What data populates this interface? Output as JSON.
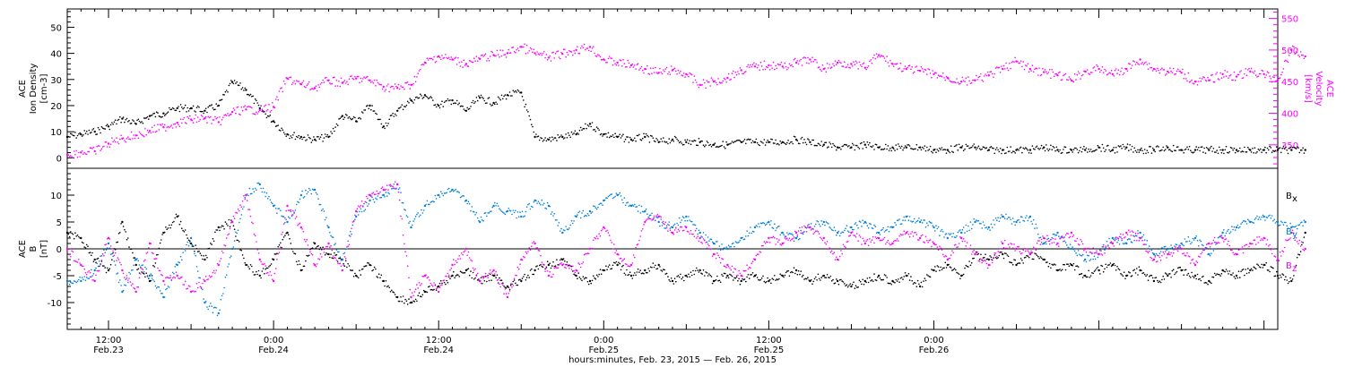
{
  "colors": {
    "black": "#000000",
    "velocity": "#ff00ff",
    "bx": "#000000",
    "by": "#0080e0",
    "bz": "#ff00ff",
    "axes": "#000000"
  },
  "chart_data": [
    {
      "type": "scatter",
      "panel": "top",
      "left_axis": {
        "label_lines": [
          "ACE",
          "Ion Density",
          "[cm-3]"
        ],
        "ylim": [
          -4,
          57
        ],
        "ticks": [
          0,
          10,
          20,
          30,
          40,
          50
        ],
        "tick_labels": [
          "0",
          "10",
          "20",
          "30",
          "40",
          "50"
        ]
      },
      "right_axis": {
        "label_lines": [
          "ACE",
          "Velocity",
          "[km/s]"
        ],
        "ylim": [
          313,
          565
        ],
        "ticks": [
          350,
          400,
          450,
          500,
          550
        ],
        "tick_labels": [
          "350",
          "400",
          "450",
          "500",
          "550"
        ]
      },
      "series": [
        {
          "key": "density",
          "axis": "left",
          "x_hours": [
            0,
            1,
            2,
            3,
            4,
            5,
            6,
            7,
            8,
            9,
            10,
            11,
            12,
            13,
            14,
            15,
            16,
            17,
            18,
            19,
            20,
            21,
            22,
            23,
            24,
            25,
            26,
            27,
            28,
            29,
            30,
            31,
            32,
            33,
            34,
            35,
            36,
            37,
            38,
            39,
            40,
            41,
            42,
            43,
            44,
            45,
            46,
            47,
            48,
            49,
            50,
            51,
            52,
            53,
            54,
            55,
            56,
            57,
            58,
            59,
            60,
            61,
            62,
            63,
            64,
            65,
            66,
            67,
            68,
            69,
            70,
            71,
            72,
            73,
            74,
            75,
            76,
            77,
            78,
            79,
            80,
            81,
            82,
            83,
            84,
            85,
            86,
            87,
            88,
            89,
            90
          ],
          "values": [
            8,
            9,
            10,
            12,
            15,
            13,
            16,
            17,
            19,
            19,
            18,
            20,
            29,
            26,
            19,
            14,
            9,
            8,
            7,
            8,
            16,
            14,
            20,
            12,
            18,
            22,
            24,
            20,
            22,
            18,
            23,
            21,
            24,
            25,
            8,
            7,
            8,
            9,
            13,
            9,
            8,
            7,
            8,
            6,
            7,
            6,
            6,
            5,
            5,
            6,
            6,
            6,
            6,
            7,
            6,
            5,
            4,
            4,
            5,
            4,
            4,
            4,
            4,
            3,
            3,
            4,
            4,
            3,
            3,
            3,
            3,
            4,
            3,
            3,
            3,
            4,
            3,
            4,
            3,
            3,
            4,
            3,
            3,
            3,
            3,
            3,
            3,
            3,
            3,
            3,
            3
          ]
        },
        {
          "key": "velocity",
          "axis": "right",
          "x_hours": [
            0,
            1,
            2,
            3,
            4,
            5,
            6,
            7,
            8,
            9,
            10,
            11,
            12,
            13,
            14,
            15,
            16,
            17,
            18,
            19,
            20,
            21,
            22,
            23,
            24,
            25,
            26,
            27,
            28,
            29,
            30,
            31,
            32,
            33,
            34,
            35,
            36,
            37,
            38,
            39,
            40,
            41,
            42,
            43,
            44,
            45,
            46,
            47,
            48,
            49,
            50,
            51,
            52,
            53,
            54,
            55,
            56,
            57,
            58,
            59,
            60,
            61,
            62,
            63,
            64,
            65,
            66,
            67,
            68,
            69,
            70,
            71,
            72,
            73,
            74,
            75,
            76,
            77,
            78,
            79,
            80,
            81,
            82,
            83,
            84,
            85,
            86,
            87,
            88,
            89,
            90
          ],
          "values": [
            335,
            338,
            340,
            352,
            360,
            365,
            372,
            378,
            385,
            390,
            392,
            386,
            402,
            406,
            405,
            410,
            455,
            446,
            440,
            452,
            448,
            455,
            452,
            442,
            440,
            445,
            480,
            490,
            485,
            478,
            486,
            492,
            495,
            505,
            495,
            488,
            494,
            500,
            505,
            485,
            480,
            476,
            470,
            464,
            468,
            462,
            445,
            450,
            456,
            468,
            474,
            476,
            474,
            480,
            485,
            470,
            480,
            478,
            472,
            492,
            478,
            470,
            467,
            462,
            456,
            450,
            452,
            460,
            470,
            482,
            470,
            465,
            460,
            452,
            466,
            470,
            462,
            470,
            485,
            470,
            466,
            464,
            450,
            452,
            462,
            458,
            466,
            462,
            452,
            500,
            490
          ]
        }
      ]
    },
    {
      "type": "scatter",
      "panel": "bottom",
      "left_axis": {
        "label_lines": [
          "ACE",
          "B",
          "[nT]"
        ],
        "ylim": [
          -15,
          15
        ],
        "ticks": [
          -10,
          -5,
          0,
          5,
          10
        ],
        "tick_labels": [
          "-10",
          "-5",
          "0",
          "5",
          "10"
        ]
      },
      "legend": {
        "position": "right",
        "entries": [
          {
            "key": "bx",
            "label": "B",
            "sub": "x"
          },
          {
            "key": "by",
            "label": "B",
            "sub": "y"
          },
          {
            "key": "bz",
            "label": "B",
            "sub": "z"
          }
        ]
      },
      "series": [
        {
          "key": "bx",
          "x_hours": [
            0,
            1,
            2,
            3,
            4,
            5,
            6,
            7,
            8,
            9,
            10,
            11,
            12,
            13,
            14,
            15,
            16,
            17,
            18,
            19,
            20,
            21,
            22,
            23,
            24,
            25,
            26,
            27,
            28,
            29,
            30,
            31,
            32,
            33,
            34,
            35,
            36,
            37,
            38,
            39,
            40,
            41,
            42,
            43,
            44,
            45,
            46,
            47,
            48,
            49,
            50,
            51,
            52,
            53,
            54,
            55,
            56,
            57,
            58,
            59,
            60,
            61,
            62,
            63,
            64,
            65,
            66,
            67,
            68,
            69,
            70,
            71,
            72,
            73,
            74,
            75,
            76,
            77,
            78,
            79,
            80,
            81,
            82,
            83,
            84,
            85,
            86,
            87,
            88,
            89,
            90
          ],
          "values": [
            3,
            2,
            -2,
            -4,
            5,
            -3,
            -6,
            3,
            6,
            1,
            -2,
            4,
            5,
            -3,
            -5,
            -2,
            3,
            -4,
            1,
            -1,
            -2,
            -5,
            -3,
            -6,
            -9,
            -10,
            -8,
            -7,
            -5,
            -4,
            -6,
            -5,
            -7,
            -6,
            -4,
            -3,
            -2,
            -5,
            -6,
            -4,
            -3,
            -5,
            -4,
            -3,
            -6,
            -5,
            -4,
            -6,
            -5,
            -6,
            -5,
            -6,
            -5,
            -4,
            -6,
            -5,
            -6,
            -7,
            -6,
            -5,
            -6,
            -5,
            -7,
            -4,
            -3,
            -5,
            -1,
            -2,
            -1,
            -3,
            -1,
            -2,
            -4,
            -3,
            -5,
            -4,
            -3,
            -5,
            -4,
            -6,
            -5,
            -4,
            -5,
            -6,
            -4,
            -5,
            -4,
            -3,
            -5,
            -6,
            3
          ]
        },
        {
          "key": "by",
          "x_hours": [
            0,
            1,
            2,
            3,
            4,
            5,
            6,
            7,
            8,
            9,
            10,
            11,
            12,
            13,
            14,
            15,
            16,
            17,
            18,
            19,
            20,
            21,
            22,
            23,
            24,
            25,
            26,
            27,
            28,
            29,
            30,
            31,
            32,
            33,
            34,
            35,
            36,
            37,
            38,
            39,
            40,
            41,
            42,
            43,
            44,
            45,
            46,
            47,
            48,
            49,
            50,
            51,
            52,
            53,
            54,
            55,
            56,
            57,
            58,
            59,
            60,
            61,
            62,
            63,
            64,
            65,
            66,
            67,
            68,
            69,
            70,
            71,
            72,
            73,
            74,
            75,
            76,
            77,
            78,
            79,
            80,
            81,
            82,
            83,
            84,
            85,
            86,
            87,
            88,
            89,
            90
          ],
          "values": [
            -6,
            -6,
            -4,
            1,
            -8,
            -2,
            -5,
            -9,
            -3,
            2,
            -10,
            -12,
            0,
            10,
            12,
            8,
            5,
            10,
            11,
            4,
            -2,
            6,
            9,
            10,
            12,
            4,
            8,
            10,
            11,
            9,
            5,
            8,
            7,
            6,
            9,
            8,
            3,
            6,
            7,
            9,
            10,
            8,
            7,
            5,
            4,
            6,
            3,
            1,
            0,
            2,
            4,
            5,
            3,
            2,
            4,
            5,
            3,
            4,
            5,
            3,
            4,
            6,
            5,
            4,
            2,
            3,
            5,
            4,
            6,
            5,
            6,
            1,
            3,
            0,
            -2,
            -1,
            2,
            1,
            3,
            -1,
            0,
            1,
            2,
            -1,
            3,
            4,
            5,
            6,
            5,
            4,
            5
          ]
        },
        {
          "key": "bz",
          "x_hours": [
            0,
            1,
            2,
            3,
            4,
            5,
            6,
            7,
            8,
            9,
            10,
            11,
            12,
            13,
            14,
            15,
            16,
            17,
            18,
            19,
            20,
            21,
            22,
            23,
            24,
            25,
            26,
            27,
            28,
            29,
            30,
            31,
            32,
            33,
            34,
            35,
            36,
            37,
            38,
            39,
            40,
            41,
            42,
            43,
            44,
            45,
            46,
            47,
            48,
            49,
            50,
            51,
            52,
            53,
            54,
            55,
            56,
            57,
            58,
            59,
            60,
            61,
            62,
            63,
            64,
            65,
            66,
            67,
            68,
            69,
            70,
            71,
            72,
            73,
            74,
            75,
            76,
            77,
            78,
            79,
            80,
            81,
            82,
            83,
            84,
            85,
            86,
            87,
            88,
            89,
            90
          ],
          "values": [
            0,
            -3,
            -6,
            2,
            -4,
            -8,
            1,
            -6,
            -5,
            -8,
            -6,
            -3,
            5,
            10,
            -2,
            -6,
            8,
            4,
            -3,
            1,
            -4,
            7,
            10,
            11,
            12,
            -9,
            -5,
            -8,
            -3,
            0,
            -6,
            -4,
            -9,
            -2,
            1,
            -5,
            -3,
            -4,
            0,
            4,
            -1,
            -3,
            5,
            6,
            3,
            4,
            2,
            -1,
            -3,
            -5,
            -2,
            2,
            1,
            3,
            4,
            2,
            -2,
            3,
            1,
            2,
            1,
            3,
            2,
            1,
            -2,
            2,
            -1,
            -3,
            1,
            0,
            -1,
            2,
            1,
            3,
            0,
            -1,
            1,
            3,
            2,
            -2,
            -1,
            0,
            -3,
            1,
            2,
            -1,
            1,
            2,
            -2,
            3,
            0
          ]
        }
      ]
    }
  ],
  "time_axis": {
    "title": "hours:minutes, Feb. 23, 2015 — Feb. 26, 2015",
    "start_hour_offset": -3,
    "end_hour_offset": 85,
    "ticks": [
      {
        "hour": 0,
        "time": "12:00",
        "date": "Feb.23"
      },
      {
        "hour": 12,
        "time": "0:00",
        "date": "Feb.24"
      },
      {
        "hour": 24,
        "time": "12:00",
        "date": "Feb.24"
      },
      {
        "hour": 36,
        "time": "0:00",
        "date": "Feb.25"
      },
      {
        "hour": 48,
        "time": "12:00",
        "date": "Feb.25"
      },
      {
        "hour": 60,
        "time": "0:00",
        "date": "Feb.26"
      }
    ]
  }
}
